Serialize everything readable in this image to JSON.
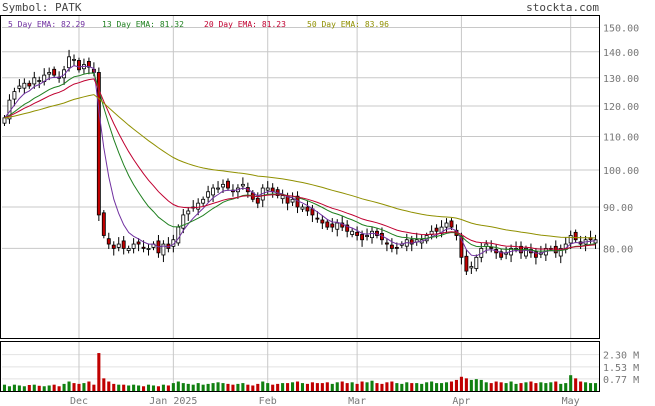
{
  "header": {
    "symbol_label": "Symbol: PATK",
    "site": "stockta.com"
  },
  "colors": {
    "ema5": "#7030a0",
    "ema13": "#208020",
    "ema20": "#c00030",
    "ema50": "#909000",
    "up_candle": "#ffffff",
    "down_candle": "#c00000",
    "volume_up": "#108010",
    "volume_down": "#c00000",
    "grid": "#c8c8c8",
    "frame": "#000000"
  },
  "chart_data": {
    "type": "candlestick",
    "symbol": "PATK",
    "ema_legend": [
      {
        "label": "5 Day EMA:",
        "value": "82.29",
        "key": "ema5"
      },
      {
        "label": "13 Day EMA:",
        "value": "81.32",
        "key": "ema13"
      },
      {
        "label": "20 Day EMA:",
        "value": "81.23",
        "key": "ema20"
      },
      {
        "label": "50 Day EMA:",
        "value": "83.96",
        "key": "ema50"
      }
    ],
    "x_tick_labels": [
      "Dec",
      "Jan 2025",
      "Feb",
      "Mar",
      "Apr",
      "May"
    ],
    "x_tick_index": [
      15,
      34,
      53,
      71,
      92,
      114
    ],
    "price_axis": {
      "scale": "log",
      "range": [
        62,
        155
      ],
      "ticks": [
        150,
        140,
        130,
        120,
        110,
        100,
        90,
        80
      ],
      "tick_labels": [
        "150.00",
        "140.00",
        "130.00",
        "120.00",
        "110.00",
        "100.00",
        "90.00",
        "80.00"
      ]
    },
    "volume_axis": {
      "unit": "M",
      "range": [
        0,
        3.1
      ],
      "ticks": [
        2.3,
        1.53,
        0.77
      ],
      "tick_labels": [
        "2.30 M",
        "1.53 M",
        "0.77 M"
      ]
    },
    "closes": [
      116,
      122,
      125,
      127,
      128,
      127,
      130,
      129,
      131,
      132,
      131,
      130,
      133,
      138,
      137,
      133,
      135,
      134,
      132,
      88,
      83,
      81,
      80,
      81,
      80,
      80,
      81,
      81,
      80,
      80,
      81,
      79,
      81,
      80,
      82,
      85,
      88,
      89,
      90,
      91,
      92,
      94,
      95,
      95,
      96,
      95,
      94,
      95,
      96,
      94,
      92,
      91,
      95,
      95,
      94,
      93,
      93,
      91,
      92,
      90,
      90,
      89,
      88,
      87,
      86,
      85,
      85,
      86,
      85,
      84,
      84,
      83,
      82,
      83,
      84,
      83,
      82,
      81,
      80,
      80,
      81,
      82,
      81,
      82,
      82,
      83,
      84,
      84,
      85,
      86,
      85,
      83,
      78,
      75,
      76,
      78,
      80,
      81,
      80,
      79,
      78,
      79,
      80,
      80,
      79,
      80,
      79,
      78,
      79,
      80,
      80,
      79,
      80,
      81,
      83,
      82,
      81,
      82,
      82,
      82
    ],
    "volume": [
      0.4,
      0.3,
      0.4,
      0.35,
      0.3,
      0.38,
      0.4,
      0.33,
      0.3,
      0.35,
      0.4,
      0.3,
      0.45,
      0.6,
      0.5,
      0.45,
      0.5,
      0.6,
      0.4,
      2.4,
      0.8,
      0.6,
      0.45,
      0.4,
      0.4,
      0.35,
      0.4,
      0.35,
      0.3,
      0.4,
      0.35,
      0.3,
      0.4,
      0.35,
      0.5,
      0.6,
      0.5,
      0.45,
      0.4,
      0.5,
      0.4,
      0.45,
      0.5,
      0.55,
      0.5,
      0.45,
      0.4,
      0.45,
      0.5,
      0.4,
      0.35,
      0.45,
      0.6,
      0.5,
      0.4,
      0.45,
      0.5,
      0.5,
      0.55,
      0.6,
      0.5,
      0.45,
      0.55,
      0.5,
      0.5,
      0.55,
      0.45,
      0.55,
      0.6,
      0.5,
      0.55,
      0.45,
      0.6,
      0.55,
      0.65,
      0.5,
      0.45,
      0.55,
      0.6,
      0.5,
      0.45,
      0.55,
      0.5,
      0.5,
      0.45,
      0.55,
      0.6,
      0.5,
      0.5,
      0.55,
      0.6,
      0.7,
      0.9,
      0.8,
      0.7,
      0.75,
      0.7,
      0.55,
      0.5,
      0.6,
      0.55,
      0.5,
      0.6,
      0.45,
      0.5,
      0.55,
      0.6,
      0.5,
      0.55,
      0.5,
      0.55,
      0.6,
      0.45,
      0.5,
      1.0,
      0.8,
      0.6,
      0.55,
      0.5,
      0.5
    ]
  }
}
